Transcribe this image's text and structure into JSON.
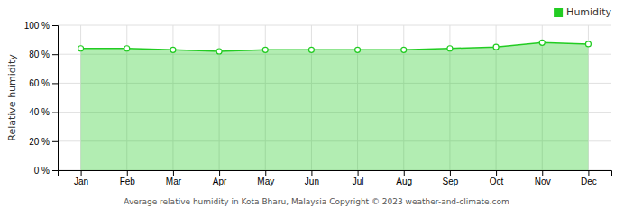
{
  "chart_data": {
    "type": "area",
    "y_label": "Relative humidity",
    "categories": [
      "Jan",
      "Feb",
      "Mar",
      "Apr",
      "May",
      "Jun",
      "Jul",
      "Aug",
      "Sep",
      "Oct",
      "Nov",
      "Dec"
    ],
    "series": [
      {
        "name": "Humidity",
        "color": "#22cc22",
        "marker": "circle",
        "values": [
          84,
          84,
          83,
          82,
          83,
          83,
          83,
          83,
          84,
          85,
          88,
          87
        ]
      }
    ],
    "ylim": [
      0,
      100
    ],
    "yticks": [
      {
        "value": 0,
        "label": "0 %"
      },
      {
        "value": 20,
        "label": "20 %"
      },
      {
        "value": 40,
        "label": "40 %"
      },
      {
        "value": 60,
        "label": "60 %"
      },
      {
        "value": 80,
        "label": "80 %"
      },
      {
        "value": 100,
        "label": "100 %"
      }
    ],
    "grid": true,
    "legend": "top-right",
    "annotations": [
      "Average relative humidity in Kota Bharu, Malaysia   Copyright © 2023  weather-and-climate.com"
    ]
  }
}
